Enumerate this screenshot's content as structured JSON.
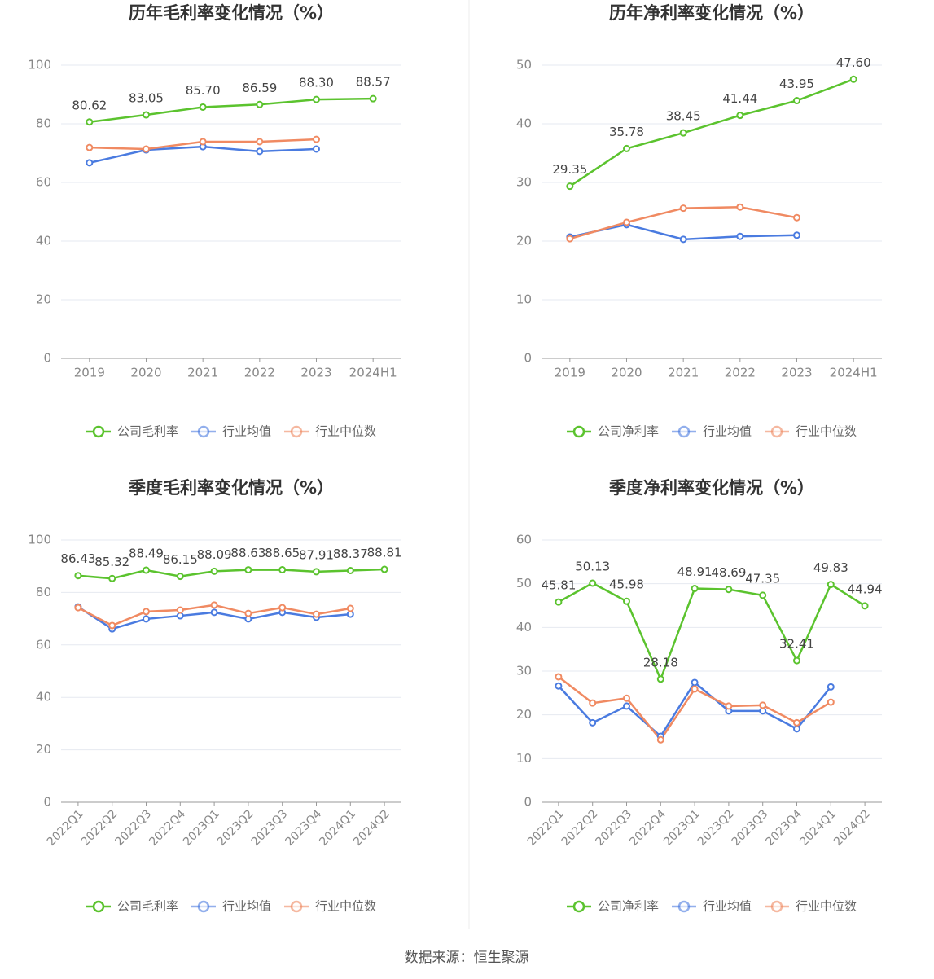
{
  "chart_data": [
    {
      "type": "line",
      "title": "历年毛利率变化情况（%）",
      "categories": [
        "2019",
        "2020",
        "2021",
        "2022",
        "2023",
        "2024H1"
      ],
      "series": [
        {
          "name": "公司毛利率",
          "color": "#5bc32e",
          "values": [
            80.62,
            83.05,
            85.7,
            86.59,
            88.3,
            88.57
          ],
          "value_labels": [
            "80.62",
            "83.05",
            "85.70",
            "86.59",
            "88.30",
            "88.57"
          ]
        },
        {
          "name": "行业均值",
          "color": "#4a7be0",
          "values": [
            66.7,
            71.1,
            72.2,
            70.6,
            71.4,
            null
          ]
        },
        {
          "name": "行业中位数",
          "color": "#f08a62",
          "values": [
            71.9,
            71.4,
            73.9,
            73.9,
            74.7,
            null
          ]
        }
      ],
      "ylim": [
        0,
        100
      ],
      "yticks": [
        0,
        20,
        40,
        60,
        80,
        100
      ],
      "grid": true,
      "legend": "bottom"
    },
    {
      "type": "line",
      "title": "历年净利率变化情况（%）",
      "categories": [
        "2019",
        "2020",
        "2021",
        "2022",
        "2023",
        "2024H1"
      ],
      "series": [
        {
          "name": "公司净利率",
          "color": "#5bc32e",
          "values": [
            29.35,
            35.78,
            38.45,
            41.44,
            43.95,
            47.6
          ],
          "value_labels": [
            "29.35",
            "35.78",
            "38.45",
            "41.44",
            "43.95",
            "47.60"
          ]
        },
        {
          "name": "行业均值",
          "color": "#4a7be0",
          "values": [
            20.7,
            22.8,
            20.3,
            20.8,
            21.0,
            null
          ]
        },
        {
          "name": "行业中位数",
          "color": "#f08a62",
          "values": [
            20.4,
            23.2,
            25.6,
            25.8,
            24.0,
            null
          ]
        }
      ],
      "ylim": [
        0,
        50
      ],
      "yticks": [
        0,
        10,
        20,
        30,
        40,
        50
      ],
      "grid": true,
      "legend": "bottom"
    },
    {
      "type": "line",
      "title": "季度毛利率变化情况（%）",
      "categories": [
        "2022Q1",
        "2022Q2",
        "2022Q3",
        "2022Q4",
        "2023Q1",
        "2023Q2",
        "2023Q3",
        "2023Q4",
        "2024Q1",
        "2024Q2"
      ],
      "series": [
        {
          "name": "公司毛利率",
          "color": "#5bc32e",
          "values": [
            86.43,
            85.32,
            88.49,
            86.15,
            88.09,
            88.63,
            88.65,
            87.91,
            88.37,
            88.81
          ]
        },
        {
          "name": "行业均值",
          "color": "#4a7be0",
          "values": [
            74.5,
            66.1,
            69.9,
            71.1,
            72.4,
            69.9,
            72.4,
            70.5,
            71.7,
            null
          ]
        },
        {
          "name": "行业中位数",
          "color": "#f08a62",
          "values": [
            74.2,
            67.4,
            72.7,
            73.3,
            75.2,
            72.0,
            74.2,
            71.7,
            73.9,
            null
          ]
        }
      ],
      "ylim": [
        0,
        100
      ],
      "yticks": [
        0,
        20,
        40,
        60,
        80,
        100
      ],
      "grid": true,
      "legend": "bottom"
    },
    {
      "type": "line",
      "title": "季度净利率变化情况（%）",
      "categories": [
        "2022Q1",
        "2022Q2",
        "2022Q3",
        "2022Q4",
        "2023Q1",
        "2023Q2",
        "2023Q3",
        "2023Q4",
        "2024Q1",
        "2024Q2"
      ],
      "series": [
        {
          "name": "公司净利率",
          "color": "#5bc32e",
          "values": [
            45.81,
            50.13,
            45.98,
            28.18,
            48.91,
            48.69,
            47.35,
            32.41,
            49.83,
            44.94
          ]
        },
        {
          "name": "行业均值",
          "color": "#4a7be0",
          "values": [
            26.6,
            18.2,
            22.0,
            15.1,
            27.4,
            20.9,
            20.9,
            16.8,
            26.4,
            null
          ]
        },
        {
          "name": "行业中位数",
          "color": "#f08a62",
          "values": [
            28.7,
            22.7,
            23.8,
            14.3,
            25.9,
            22.0,
            22.2,
            18.2,
            22.9,
            null
          ]
        }
      ],
      "ylim": [
        0,
        60
      ],
      "yticks": [
        0,
        10,
        20,
        30,
        40,
        50,
        60
      ],
      "grid": true,
      "legend": "bottom"
    }
  ],
  "source": "数据来源：恒生聚源"
}
